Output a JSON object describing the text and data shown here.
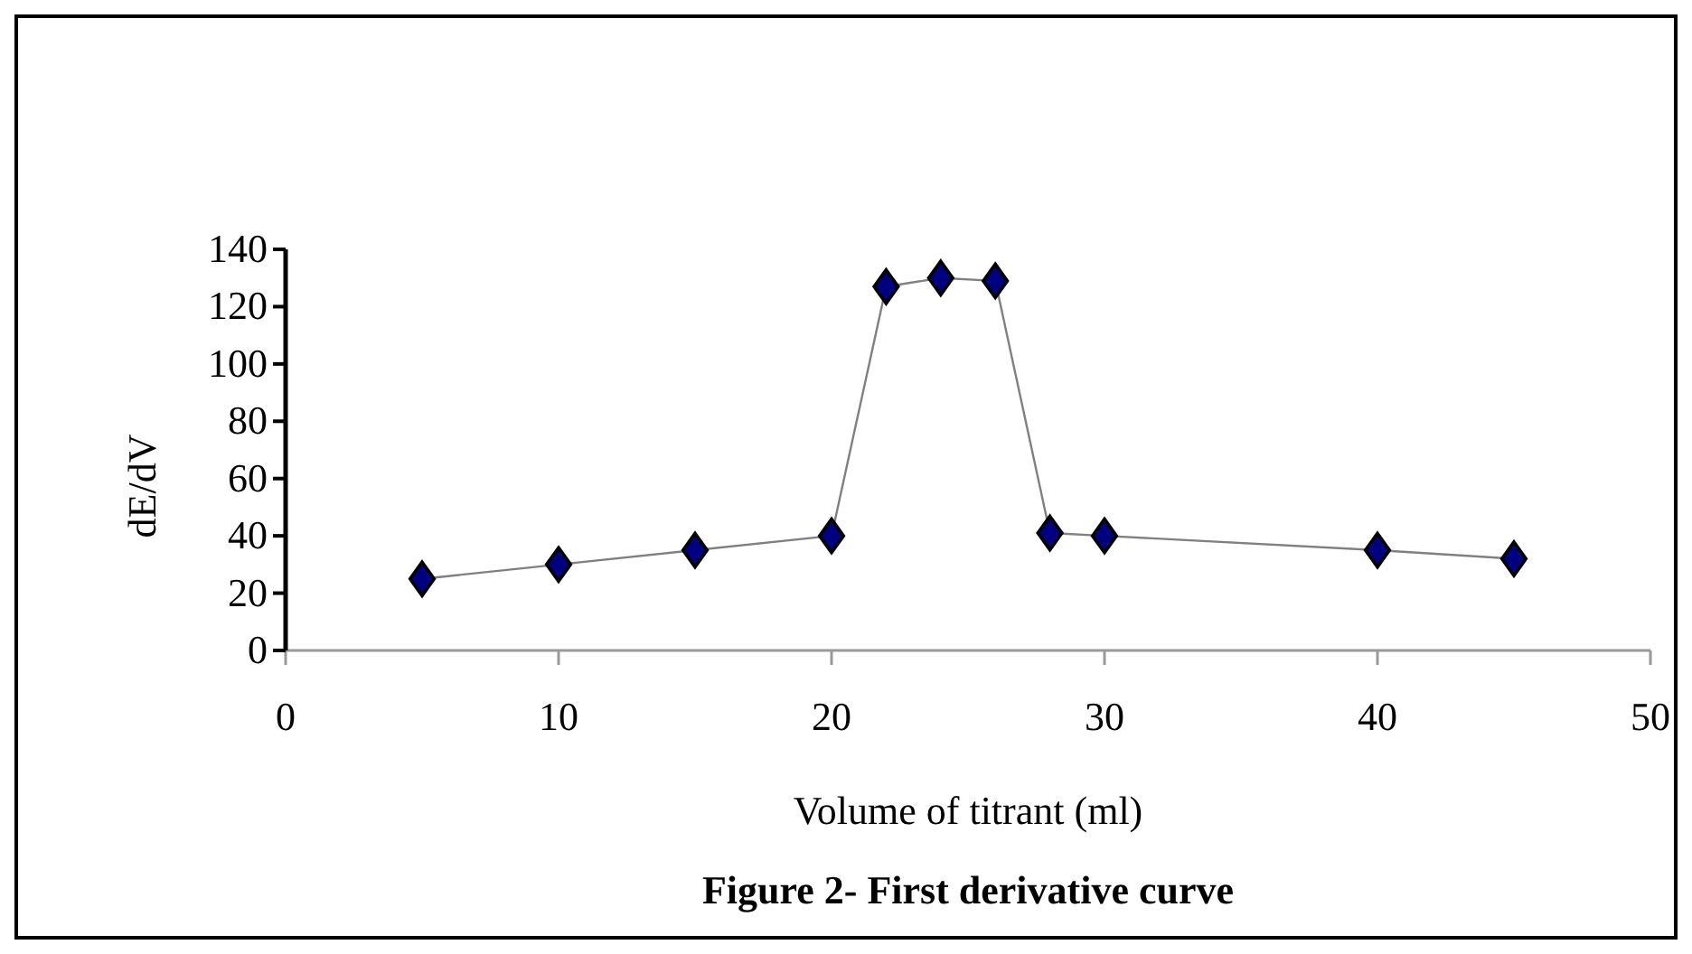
{
  "chart_data": {
    "type": "line",
    "title": "Figure 2- First derivative curve",
    "xlabel": "Volume of titrant (ml)",
    "ylabel": "dE/dV",
    "x": [
      5,
      10,
      15,
      20,
      22,
      24,
      26,
      28,
      30,
      40,
      45
    ],
    "series": [
      {
        "color": "#000080",
        "values": [
          25,
          30,
          35,
          40,
          127,
          130,
          129,
          41,
          40,
          35,
          32
        ]
      }
    ],
    "xlim": [
      0,
      50
    ],
    "xticks": [
      0,
      10,
      20,
      30,
      40,
      50
    ],
    "ylim": [
      0,
      140
    ],
    "yticks": [
      0,
      20,
      40,
      60,
      80,
      100,
      120,
      140
    ],
    "marker": "diamond",
    "line_style": "solid",
    "grid": false
  }
}
